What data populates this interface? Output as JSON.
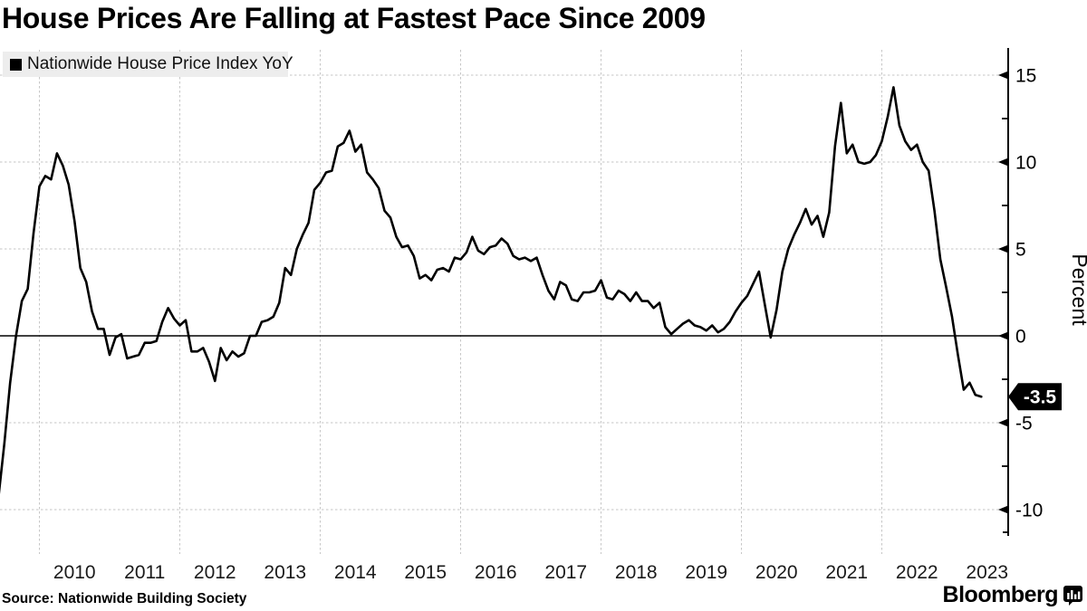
{
  "title": "House Prices Are Falling at Fastest Pace Since 2009",
  "legend": {
    "label": "Nationwide House Price Index YoY",
    "swatch_color": "#000000",
    "background": "#ededed"
  },
  "y_axis": {
    "title": "Percent",
    "major_ticks": [
      15,
      10,
      5,
      0,
      -5,
      -10
    ],
    "minor_ticks": [
      12.5,
      7.5,
      2.5,
      -2.5,
      -7.5
    ],
    "last_value_badge": {
      "text": "-3.5",
      "background": "#000000",
      "color": "#ffffff"
    }
  },
  "x_axis": {
    "year_labels": [
      "2010",
      "2011",
      "2012",
      "2013",
      "2014",
      "2015",
      "2016",
      "2017",
      "2018",
      "2019",
      "2020",
      "2021",
      "2022",
      "2023"
    ],
    "gridline_years": [
      2010,
      2012,
      2014,
      2016,
      2018,
      2020,
      2022
    ]
  },
  "footer": {
    "source": "Source: Nationwide Building Society",
    "brand": "Bloomberg",
    "brand_icon": "bar-chart-speech-bubble-icon"
  },
  "colors": {
    "line": "#000000",
    "grid": "#c6c6c6",
    "zero_line": "#000000",
    "axis": "#000000",
    "text": "#000000",
    "background": "#ffffff",
    "badge_bg": "#000000",
    "badge_fg": "#ffffff"
  },
  "chart_data": {
    "type": "line",
    "title": "House Prices Are Falling at Fastest Pace Since 2009",
    "series_name": "Nationwide House Price Index YoY",
    "unit": "percent, year over year",
    "frequency": "monthly",
    "start": "2009-05",
    "end": "2023-06",
    "ylabel": "Percent",
    "ylim": [
      -11.5,
      16.5
    ],
    "xlim_years": [
      2009.33,
      2023.8
    ],
    "grid": "dashed",
    "legend_position": "top-left",
    "zero_line": true,
    "last_value_label": -3.5,
    "values": [
      -11.3,
      -9.3,
      -6.2,
      -2.7,
      0.0,
      2.0,
      2.7,
      5.9,
      8.6,
      9.2,
      9.0,
      10.5,
      9.8,
      8.7,
      6.6,
      3.9,
      3.1,
      1.4,
      0.4,
      0.4,
      -1.1,
      -0.1,
      0.1,
      -1.3,
      -1.2,
      -1.1,
      -0.4,
      -0.4,
      -0.3,
      0.8,
      1.6,
      1.0,
      0.6,
      0.9,
      -0.9,
      -0.9,
      -0.7,
      -1.5,
      -2.6,
      -0.7,
      -1.4,
      -0.9,
      -1.2,
      -1.0,
      0.0,
      0.0,
      0.8,
      0.9,
      1.1,
      1.9,
      3.9,
      3.5,
      5.0,
      5.8,
      6.5,
      8.4,
      8.8,
      9.4,
      9.5,
      10.9,
      11.1,
      11.8,
      10.6,
      11.0,
      9.4,
      9.0,
      8.5,
      7.2,
      6.8,
      5.7,
      5.1,
      5.2,
      4.6,
      3.3,
      3.5,
      3.2,
      3.8,
      3.9,
      3.7,
      4.5,
      4.4,
      4.8,
      5.7,
      4.9,
      4.7,
      5.1,
      5.2,
      5.6,
      5.3,
      4.6,
      4.4,
      4.5,
      4.3,
      4.5,
      3.5,
      2.6,
      2.1,
      3.1,
      2.9,
      2.1,
      2.0,
      2.5,
      2.5,
      2.6,
      3.2,
      2.2,
      2.1,
      2.6,
      2.4,
      2.0,
      2.5,
      2.0,
      2.0,
      1.6,
      1.9,
      0.5,
      0.1,
      0.4,
      0.7,
      0.9,
      0.6,
      0.5,
      0.3,
      0.6,
      0.2,
      0.4,
      0.8,
      1.4,
      1.9,
      2.3,
      3.0,
      3.7,
      1.8,
      -0.1,
      1.5,
      3.7,
      5.0,
      5.8,
      6.5,
      7.3,
      6.4,
      6.9,
      5.7,
      7.1,
      10.9,
      13.4,
      10.5,
      11.0,
      10.0,
      9.9,
      10.0,
      10.4,
      11.2,
      12.6,
      14.3,
      12.1,
      11.2,
      10.7,
      11.0,
      10.0,
      9.5,
      7.2,
      4.4,
      2.8,
      1.1,
      -1.1,
      -3.1,
      -2.7,
      -3.4,
      -3.5
    ]
  }
}
